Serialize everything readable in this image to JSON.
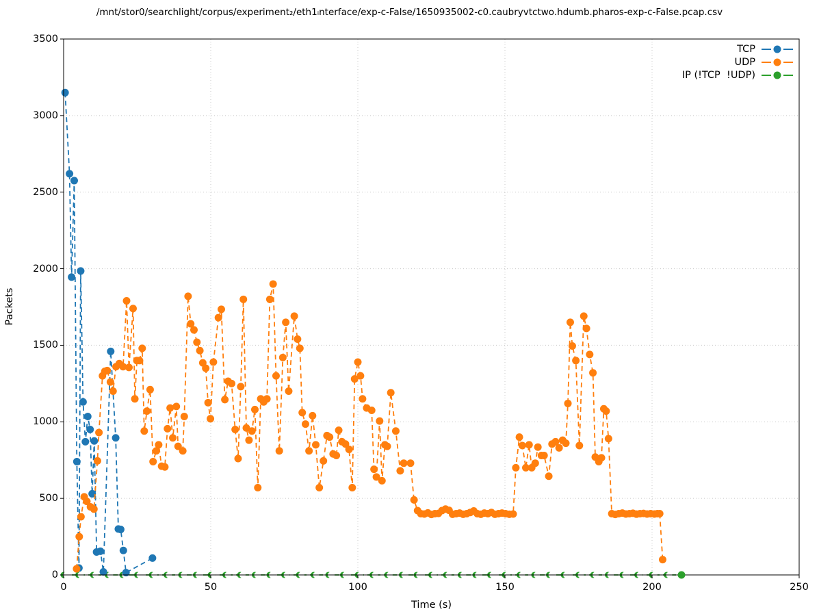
{
  "title": "/mnt/stor0/searchlight/corpus/experiment₂/eth1ᵢnterface/exp-c-False/1650935002-c0.caubryvtctwo.hdumb.pharos-exp-c-False.pcap.csv",
  "chart_data": {
    "type": "line",
    "title": "/mnt/stor0/searchlight/corpus/experiment₂/eth1ᵢnterface/exp-c-False/1650935002-c0.caubryvtctwo.hdumb.pharos-exp-c-False.pcap.csv",
    "xlabel": "Time (s)",
    "ylabel": "Packets",
    "xlim": [
      0,
      250
    ],
    "ylim": [
      0,
      3500
    ],
    "x_ticks": [
      0,
      50,
      100,
      150,
      200,
      250
    ],
    "y_ticks": [
      0,
      500,
      1000,
      1500,
      2000,
      2500,
      3000,
      3500
    ],
    "grid": "dotted",
    "grid_color": "#c8c8c8",
    "legend_position": "upper right",
    "legend_handle_side": "right",
    "series": [
      {
        "name": "TCP",
        "color": "#1f77b4",
        "linestyle": "dashed",
        "marker": "circle",
        "points": [
          [
            0.5,
            3150
          ],
          [
            2.0,
            2620
          ],
          [
            2.7,
            1945
          ],
          [
            3.6,
            2575
          ],
          [
            4.5,
            740
          ],
          [
            5.2,
            45
          ],
          [
            5.8,
            1985
          ],
          [
            6.6,
            1130
          ],
          [
            7.4,
            870
          ],
          [
            8.2,
            1035
          ],
          [
            9.0,
            950
          ],
          [
            9.7,
            530
          ],
          [
            10.4,
            875
          ],
          [
            11.2,
            150
          ],
          [
            12.5,
            155
          ],
          [
            13.5,
            20
          ],
          [
            16.0,
            1460
          ],
          [
            17.7,
            895
          ],
          [
            18.6,
            300
          ],
          [
            19.4,
            297
          ],
          [
            20.3,
            160
          ],
          [
            21.2,
            15
          ],
          [
            30.2,
            110
          ]
        ]
      },
      {
        "name": "UDP",
        "color": "#ff7f0e",
        "linestyle": "dashed",
        "marker": "circle",
        "points": [
          [
            4.4,
            40
          ],
          [
            5.3,
            250
          ],
          [
            5.9,
            380
          ],
          [
            7.0,
            510
          ],
          [
            7.9,
            480
          ],
          [
            9.1,
            445
          ],
          [
            10.3,
            430
          ],
          [
            11.5,
            745
          ],
          [
            12.0,
            930
          ],
          [
            13.2,
            1300
          ],
          [
            14.0,
            1330
          ],
          [
            14.8,
            1335
          ],
          [
            15.9,
            1260
          ],
          [
            16.8,
            1200
          ],
          [
            17.8,
            1360
          ],
          [
            18.9,
            1380
          ],
          [
            20.2,
            1360
          ],
          [
            21.4,
            1790
          ],
          [
            22.2,
            1355
          ],
          [
            23.6,
            1740
          ],
          [
            24.2,
            1150
          ],
          [
            24.9,
            1400
          ],
          [
            25.8,
            1400
          ],
          [
            26.7,
            1480
          ],
          [
            27.4,
            940
          ],
          [
            28.3,
            1070
          ],
          [
            29.4,
            1210
          ],
          [
            30.4,
            740
          ],
          [
            31.5,
            810
          ],
          [
            32.3,
            850
          ],
          [
            33.3,
            710
          ],
          [
            34.4,
            705
          ],
          [
            35.3,
            955
          ],
          [
            36.2,
            1090
          ],
          [
            37.1,
            895
          ],
          [
            38.3,
            1100
          ],
          [
            38.9,
            840
          ],
          [
            40.5,
            810
          ],
          [
            41.0,
            1035
          ],
          [
            42.3,
            1820
          ],
          [
            43.2,
            1640
          ],
          [
            44.3,
            1600
          ],
          [
            45.3,
            1520
          ],
          [
            46.3,
            1465
          ],
          [
            47.3,
            1385
          ],
          [
            48.3,
            1350
          ],
          [
            49.1,
            1125
          ],
          [
            49.9,
            1020
          ],
          [
            50.9,
            1390
          ],
          [
            52.6,
            1680
          ],
          [
            53.6,
            1735
          ],
          [
            54.8,
            1145
          ],
          [
            55.9,
            1265
          ],
          [
            57.1,
            1250
          ],
          [
            58.3,
            950
          ],
          [
            59.3,
            760
          ],
          [
            60.2,
            1230
          ],
          [
            61.1,
            1800
          ],
          [
            62.1,
            960
          ],
          [
            63.0,
            880
          ],
          [
            64.0,
            940
          ],
          [
            65.0,
            1080
          ],
          [
            66.0,
            570
          ],
          [
            67.0,
            1150
          ],
          [
            68.0,
            1130
          ],
          [
            69.1,
            1150
          ],
          [
            70.1,
            1800
          ],
          [
            71.2,
            1900
          ],
          [
            72.2,
            1300
          ],
          [
            73.3,
            810
          ],
          [
            74.5,
            1420
          ],
          [
            75.5,
            1650
          ],
          [
            76.5,
            1200
          ],
          [
            78.4,
            1690
          ],
          [
            79.5,
            1540
          ],
          [
            80.3,
            1480
          ],
          [
            81.1,
            1060
          ],
          [
            82.2,
            985
          ],
          [
            83.4,
            810
          ],
          [
            84.6,
            1040
          ],
          [
            85.7,
            850
          ],
          [
            86.9,
            570
          ],
          [
            88.3,
            745
          ],
          [
            89.5,
            910
          ],
          [
            90.4,
            900
          ],
          [
            91.6,
            790
          ],
          [
            92.7,
            780
          ],
          [
            93.5,
            945
          ],
          [
            94.6,
            870
          ],
          [
            95.8,
            855
          ],
          [
            97.0,
            820
          ],
          [
            98.1,
            570
          ],
          [
            98.9,
            1280
          ],
          [
            100.0,
            1390
          ],
          [
            100.9,
            1300
          ],
          [
            101.6,
            1150
          ],
          [
            103.0,
            1090
          ],
          [
            104.7,
            1075
          ],
          [
            105.5,
            690
          ],
          [
            106.3,
            640
          ],
          [
            107.4,
            1005
          ],
          [
            108.2,
            615
          ],
          [
            109.2,
            850
          ],
          [
            110.0,
            840
          ],
          [
            111.2,
            1190
          ],
          [
            112.9,
            940
          ],
          [
            114.4,
            680
          ],
          [
            115.6,
            730
          ],
          [
            117.9,
            730
          ],
          [
            119.1,
            490
          ],
          [
            120.3,
            420
          ],
          [
            121.4,
            400
          ],
          [
            122.6,
            398
          ],
          [
            123.8,
            405
          ],
          [
            125.0,
            395
          ],
          [
            126.2,
            400
          ],
          [
            127.4,
            402
          ],
          [
            128.6,
            420
          ],
          [
            129.8,
            430
          ],
          [
            131.0,
            422
          ],
          [
            132.2,
            396
          ],
          [
            133.4,
            400
          ],
          [
            134.6,
            404
          ],
          [
            135.8,
            396
          ],
          [
            137.0,
            400
          ],
          [
            138.2,
            408
          ],
          [
            139.4,
            418
          ],
          [
            140.6,
            400
          ],
          [
            141.8,
            396
          ],
          [
            143.0,
            404
          ],
          [
            144.2,
            400
          ],
          [
            145.4,
            408
          ],
          [
            146.6,
            396
          ],
          [
            147.8,
            400
          ],
          [
            149.0,
            404
          ],
          [
            150.2,
            400
          ],
          [
            151.5,
            396
          ],
          [
            152.8,
            398
          ],
          [
            153.7,
            700
          ],
          [
            154.9,
            900
          ],
          [
            155.9,
            845
          ],
          [
            157.1,
            700
          ],
          [
            158.2,
            850
          ],
          [
            159.1,
            700
          ],
          [
            160.3,
            730
          ],
          [
            161.2,
            835
          ],
          [
            162.4,
            780
          ],
          [
            163.3,
            780
          ],
          [
            164.9,
            645
          ],
          [
            166.0,
            855
          ],
          [
            167.2,
            870
          ],
          [
            168.4,
            830
          ],
          [
            169.6,
            880
          ],
          [
            170.7,
            860
          ],
          [
            171.4,
            1120
          ],
          [
            172.2,
            1650
          ],
          [
            172.9,
            1495
          ],
          [
            174.1,
            1400
          ],
          [
            175.3,
            845
          ],
          [
            176.8,
            1690
          ],
          [
            177.7,
            1610
          ],
          [
            178.8,
            1440
          ],
          [
            179.9,
            1320
          ],
          [
            180.7,
            770
          ],
          [
            181.9,
            740
          ],
          [
            182.8,
            765
          ],
          [
            183.6,
            1085
          ],
          [
            184.4,
            1070
          ],
          [
            185.2,
            890
          ],
          [
            186.3,
            400
          ],
          [
            187.5,
            395
          ],
          [
            188.7,
            400
          ],
          [
            189.9,
            404
          ],
          [
            191.1,
            398
          ],
          [
            192.3,
            400
          ],
          [
            193.5,
            403
          ],
          [
            194.7,
            397
          ],
          [
            195.9,
            400
          ],
          [
            197.1,
            402
          ],
          [
            198.3,
            398
          ],
          [
            199.5,
            400
          ],
          [
            200.8,
            398
          ],
          [
            201.8,
            400
          ],
          [
            202.6,
            400
          ],
          [
            203.6,
            100
          ]
        ]
      },
      {
        "name": "IP (!TCP  !UDP)",
        "color": "#2ca02c",
        "linestyle": "dashed",
        "marker": "circle",
        "points": [
          [
            0,
            0
          ],
          [
            5,
            0
          ],
          [
            10,
            0
          ],
          [
            15,
            0
          ],
          [
            20,
            0
          ],
          [
            25,
            0
          ],
          [
            30,
            0
          ],
          [
            35,
            0
          ],
          [
            40,
            0
          ],
          [
            45,
            0
          ],
          [
            50,
            0
          ],
          [
            55,
            0
          ],
          [
            60,
            0
          ],
          [
            65,
            0
          ],
          [
            70,
            0
          ],
          [
            75,
            0
          ],
          [
            80,
            0
          ],
          [
            85,
            0
          ],
          [
            90,
            0
          ],
          [
            95,
            0
          ],
          [
            100,
            0
          ],
          [
            105,
            0
          ],
          [
            110,
            0
          ],
          [
            115,
            0
          ],
          [
            120,
            0
          ],
          [
            125,
            0
          ],
          [
            130,
            0
          ],
          [
            135,
            0
          ],
          [
            140,
            0
          ],
          [
            145,
            0
          ],
          [
            150,
            0
          ],
          [
            155,
            0
          ],
          [
            160,
            0
          ],
          [
            165,
            0
          ],
          [
            170,
            0
          ],
          [
            175,
            0
          ],
          [
            180,
            0
          ],
          [
            185,
            0
          ],
          [
            190,
            0
          ],
          [
            195,
            0
          ],
          [
            200,
            0
          ],
          [
            205,
            0
          ],
          [
            210,
            0
          ]
        ]
      }
    ]
  }
}
